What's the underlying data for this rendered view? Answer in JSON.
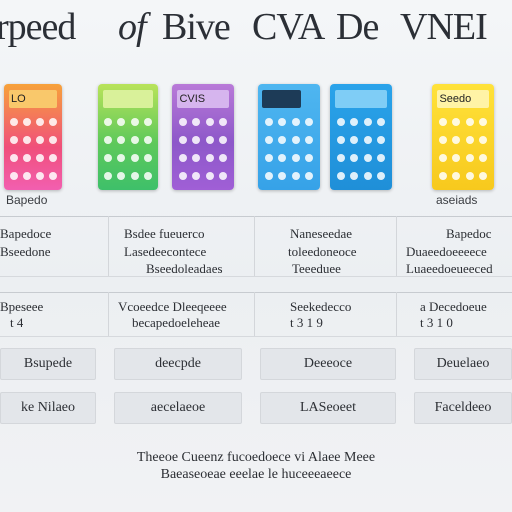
{
  "title": {
    "part1": "rpeed",
    "part2": "of",
    "part3": "Bive",
    "part4": "CVA",
    "part5": "De",
    "part6": "VNEI"
  },
  "calculators": [
    {
      "name": "pink-orange",
      "screen_text": "LO",
      "colors": [
        "#f7a23a",
        "#f25fb0"
      ]
    },
    {
      "name": "green",
      "screen_text": "",
      "colors": [
        "#b9e35a",
        "#3ec06a"
      ]
    },
    {
      "name": "purple",
      "screen_text": "CVIS",
      "colors": [
        "#b97ad8",
        "#a05fd6"
      ]
    },
    {
      "name": "blue-dark-screen",
      "screen_text": "",
      "colors": [
        "#4fb6f0",
        "#36a2e8"
      ]
    },
    {
      "name": "blue",
      "screen_text": "",
      "colors": [
        "#2aa3ea",
        "#1f8fd8"
      ]
    },
    {
      "name": "yellow",
      "screen_text": "Seedo",
      "colors": [
        "#ffe23a",
        "#f7c91d"
      ]
    }
  ],
  "captions": {
    "c1": "Bapedo",
    "c6": "aseiads"
  },
  "table": {
    "row1": {
      "col1": [
        "Bapedoce",
        "Bseedone"
      ],
      "col2": [
        "Bsdee fueuerco",
        "Lasedeecontece",
        "Bseedoleadaes"
      ],
      "col3": [
        "Naneseedae",
        "toleedoneoce",
        "Teeeduee"
      ],
      "col4": [
        "Bapedoc",
        "Duaeedoeeeece",
        "Luaeedoeueeced"
      ]
    },
    "row2": {
      "col1": [
        "Bpeseee",
        "t 4"
      ],
      "col2": [
        "Vcoeedce Dleeqeeee",
        "becapedoeleheae"
      ],
      "col3": [
        "Seekedecco",
        "t  3   1   9"
      ],
      "col4": [
        "a Decedoeue",
        "t  3  1  0"
      ]
    }
  },
  "buttons": {
    "b1": "Bsupede",
    "b2": "deecpde",
    "b3": "Deeeoce",
    "b4": "Deuelaeo",
    "l1": "ke Nilaeo",
    "l2": "aecelaeoe",
    "l3": "LASeoeet",
    "l4": "Faceldeeo"
  },
  "footer": {
    "line1": "Theeoe Cueenz fucoedoece  vi Alaee Meee",
    "line2": "Baeaseoeae eeelae le huceeeaeece"
  }
}
